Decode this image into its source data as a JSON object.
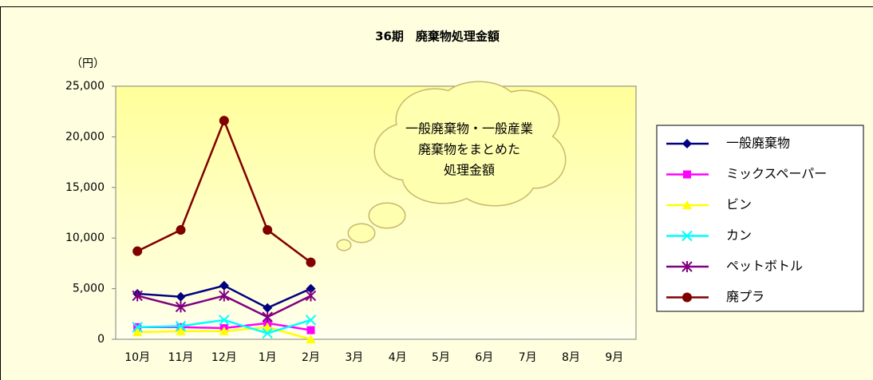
{
  "chart_data": {
    "type": "line",
    "title": "36期　廃棄物処理金額",
    "y_label": "（円）",
    "annotation": [
      "一般廃棄物・一般産業",
      "廃棄物をまとめた",
      "処理金額"
    ],
    "categories": [
      "10月",
      "11月",
      "12月",
      "1月",
      "2月",
      "3月",
      "4月",
      "5月",
      "6月",
      "7月",
      "8月",
      "9月"
    ],
    "series": [
      {
        "name": "一般廃棄物",
        "color": "#000080",
        "marker": "diamond",
        "values": [
          4500,
          4200,
          5300,
          3100,
          5000,
          null,
          null,
          null,
          null,
          null,
          null,
          null
        ]
      },
      {
        "name": "ミックスペーパー",
        "color": "#ff00ff",
        "marker": "square",
        "values": [
          1200,
          1200,
          1100,
          1600,
          900,
          null,
          null,
          null,
          null,
          null,
          null,
          null
        ]
      },
      {
        "name": "ビン",
        "color": "#ffff00",
        "marker": "triangle",
        "values": [
          700,
          800,
          800,
          1200,
          0,
          null,
          null,
          null,
          null,
          null,
          null,
          null
        ]
      },
      {
        "name": "カン",
        "color": "#00ffff",
        "marker": "x",
        "values": [
          1200,
          1300,
          1900,
          600,
          1900,
          null,
          null,
          null,
          null,
          null,
          null,
          null
        ]
      },
      {
        "name": "ペットボトル",
        "color": "#800080",
        "marker": "asterisk",
        "values": [
          4300,
          3200,
          4300,
          2200,
          4300,
          null,
          null,
          null,
          null,
          null,
          null,
          null
        ]
      },
      {
        "name": "廃プラ",
        "color": "#800000",
        "marker": "circle",
        "values": [
          8700,
          10800,
          21600,
          10800,
          7600,
          null,
          null,
          null,
          null,
          null,
          null,
          null
        ]
      }
    ],
    "ylim": [
      0,
      25000
    ],
    "yticks": [
      0,
      {
        "value": 5000,
        "label": "5,000"
      },
      {
        "value": 10000,
        "label": "10,000"
      },
      {
        "value": 15000,
        "label": "15,000"
      },
      {
        "value": 20000,
        "label": "20,000"
      },
      {
        "value": 25000,
        "label": "25,000"
      }
    ],
    "grid": false,
    "legend": "right"
  }
}
